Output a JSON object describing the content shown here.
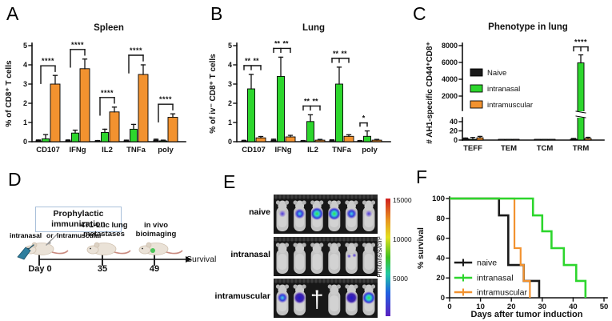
{
  "colors": {
    "naive": "#1a1a1a",
    "intranasal": "#2dd62d",
    "intramuscular": "#f2922f",
    "box_border": "#a9c0da",
    "imaging_bg": "#181818"
  },
  "panels": {
    "A": {
      "letter": "A"
    },
    "B": {
      "letter": "B"
    },
    "C": {
      "letter": "C"
    },
    "D": {
      "letter": "D"
    },
    "E": {
      "letter": "E"
    },
    "F": {
      "letter": "F"
    }
  },
  "chart_data": [
    {
      "id": "spleen",
      "panel": "A",
      "type": "bar",
      "title": "Spleen",
      "xlabel": "",
      "ylabel": "% of CD8⁺ T cells",
      "ylim": [
        0,
        5
      ],
      "yticks": [
        0,
        1,
        2,
        3,
        4,
        5
      ],
      "categories": [
        "CD107",
        "IFNg",
        "IL2",
        "TNFa",
        "poly"
      ],
      "series": [
        {
          "name": "Naive",
          "color_key": "naive",
          "values": [
            0.05,
            0.05,
            0.03,
            0.04,
            0.08
          ],
          "errors": [
            0.04,
            0.04,
            0.03,
            0.04,
            0.05
          ]
        },
        {
          "name": "intranasal",
          "color_key": "intranasal",
          "values": [
            0.15,
            0.45,
            0.48,
            0.65,
            0.04
          ],
          "errors": [
            0.22,
            0.15,
            0.17,
            0.25,
            0.04
          ]
        },
        {
          "name": "intramuscular",
          "color_key": "intramuscular",
          "values": [
            3.0,
            3.8,
            1.55,
            3.5,
            1.27
          ],
          "errors": [
            0.45,
            0.5,
            0.25,
            0.5,
            0.18
          ]
        }
      ],
      "significance": [
        {
          "cat": "CD107",
          "label": "****",
          "style": "single"
        },
        {
          "cat": "IFNg",
          "label": "****",
          "style": "single"
        },
        {
          "cat": "IL2",
          "label": "****",
          "style": "single"
        },
        {
          "cat": "TNFa",
          "label": "****",
          "style": "single"
        },
        {
          "cat": "poly",
          "label": "****",
          "style": "single"
        }
      ]
    },
    {
      "id": "lung",
      "panel": "B",
      "type": "bar",
      "title": "Lung",
      "xlabel": "",
      "ylabel": "% of iv⁻ CD8⁺ T cells",
      "ylim": [
        0,
        5
      ],
      "yticks": [
        0,
        1,
        2,
        3,
        4,
        5
      ],
      "categories": [
        "CD107",
        "IFNg",
        "IL2",
        "TNFa",
        "poly"
      ],
      "series": [
        {
          "name": "Naive",
          "color_key": "naive",
          "values": [
            0.04,
            0.08,
            0.03,
            0.06,
            0.03
          ],
          "errors": [
            0.03,
            0.05,
            0.03,
            0.04,
            0.03
          ]
        },
        {
          "name": "intranasal",
          "color_key": "intranasal",
          "values": [
            2.75,
            3.4,
            1.05,
            3.0,
            0.28
          ],
          "errors": [
            0.75,
            1.0,
            0.35,
            0.88,
            0.28
          ]
        },
        {
          "name": "intramuscular",
          "color_key": "intramuscular",
          "values": [
            0.2,
            0.25,
            0.08,
            0.28,
            0.08
          ],
          "errors": [
            0.07,
            0.08,
            0.04,
            0.08,
            0.04
          ]
        }
      ],
      "significance": [
        {
          "cat": "CD107",
          "label": "** **",
          "style": "double"
        },
        {
          "cat": "IFNg",
          "label": "** **",
          "style": "double"
        },
        {
          "cat": "IL2",
          "label": "** **",
          "style": "double"
        },
        {
          "cat": "TNFa",
          "label": "** **",
          "style": "double"
        },
        {
          "cat": "poly",
          "label": "*",
          "style": "small"
        }
      ]
    },
    {
      "id": "phenotype",
      "panel": "C",
      "type": "bar",
      "title": "Phenotype in lung",
      "xlabel": "",
      "ylabel": "# AH1-specific CD44⁺CD8⁺",
      "axis_break": {
        "lower_lim": [
          0,
          40
        ],
        "lower_ticks": [
          0,
          20,
          40
        ],
        "upper_lim": [
          2000,
          8000
        ],
        "upper_ticks": [
          2000,
          4000,
          6000,
          8000
        ]
      },
      "categories": [
        "TEFF",
        "TEM",
        "TCM",
        "TRM"
      ],
      "series": [
        {
          "name": "Naive",
          "color_key": "naive",
          "values": [
            2.5,
            0.3,
            0.25,
            2.0
          ],
          "errors": [
            2.0,
            0.3,
            0.25,
            1.5
          ]
        },
        {
          "name": "intranasal",
          "color_key": "intranasal",
          "values": [
            1.2,
            0.2,
            0.2,
            5950
          ],
          "errors": [
            4.5,
            0.2,
            0.2,
            950
          ]
        },
        {
          "name": "intramuscular",
          "color_key": "intramuscular",
          "values": [
            5.0,
            0.4,
            0.3,
            3.5
          ],
          "errors": [
            3.0,
            0.3,
            0.3,
            2.5
          ]
        }
      ],
      "legend": [
        "Naive",
        "intranasal",
        "intramuscular"
      ],
      "significance": [
        {
          "cat": "TRM",
          "label": "****",
          "style": "double"
        }
      ]
    },
    {
      "id": "survival",
      "panel": "F",
      "type": "line",
      "title": "",
      "xlabel": "Days after tumor induction",
      "ylabel": "% survival",
      "xlim": [
        0,
        50
      ],
      "xticks": [
        0,
        10,
        20,
        30,
        40,
        50
      ],
      "ylim": [
        0,
        100
      ],
      "yticks": [
        0,
        20,
        40,
        60,
        80,
        100
      ],
      "legend_position": "lower-left",
      "series": [
        {
          "name": "naive",
          "color_key": "naive",
          "points": [
            [
              0,
              100
            ],
            [
              16,
              100
            ],
            [
              16,
              83
            ],
            [
              19,
              83
            ],
            [
              19,
              33
            ],
            [
              24,
              33
            ],
            [
              24,
              17
            ],
            [
              29,
              17
            ],
            [
              29,
              0
            ]
          ]
        },
        {
          "name": "intranasal",
          "color_key": "intranasal",
          "points": [
            [
              0,
              100
            ],
            [
              27,
              100
            ],
            [
              27,
              83
            ],
            [
              30,
              83
            ],
            [
              30,
              67
            ],
            [
              33,
              67
            ],
            [
              33,
              50
            ],
            [
              37,
              50
            ],
            [
              37,
              33
            ],
            [
              41,
              33
            ],
            [
              41,
              17
            ],
            [
              44,
              17
            ],
            [
              44,
              0
            ]
          ]
        },
        {
          "name": "intramuscular",
          "color_key": "intramuscular",
          "points": [
            [
              0,
              100
            ],
            [
              21,
              100
            ],
            [
              21,
              50
            ],
            [
              23,
              50
            ],
            [
              23,
              33
            ],
            [
              24,
              33
            ],
            [
              24,
              17
            ],
            [
              26,
              17
            ],
            [
              26,
              0
            ]
          ]
        }
      ]
    }
  ],
  "timeline": {
    "box_lines": [
      "Prophylactic",
      "immunization"
    ],
    "route_words": [
      {
        "text": "intranasal",
        "color_key": "intranasal"
      },
      {
        "text": "or",
        "color_key": "naive"
      },
      {
        "text": "intramuscular",
        "color_key": "intramuscular"
      }
    ],
    "milestones": [
      {
        "day": "Day 0",
        "lines": [
          "",
          ""
        ]
      },
      {
        "day": "35",
        "lines": [
          "4T1-Luc lung",
          "metastases"
        ]
      },
      {
        "day": "49",
        "lines": [
          "in vivo",
          "bioimaging"
        ]
      }
    ],
    "end_label": "Survival"
  },
  "bioimaging": {
    "rows": [
      {
        "label": "naive",
        "color_key": "naive",
        "mice": [
          "spot-low",
          "spot-med",
          "spot-high",
          "spot-high",
          "spot-med",
          "spot-low"
        ]
      },
      {
        "label": "intranasal",
        "color_key": "intranasal",
        "mice": [
          "none",
          "none",
          "none",
          "none",
          "spot-dots",
          "none"
        ]
      },
      {
        "label": "intramuscular",
        "color_key": "intramuscular",
        "mice": [
          "spot-med",
          "spot-deep",
          "dagger",
          "none",
          "spot-deep",
          "spot-high"
        ]
      }
    ],
    "dagger": "†",
    "scale_ticks": [
      "15000",
      "10000",
      "5000"
    ],
    "scale_unit": "Photons/s/cm²"
  }
}
